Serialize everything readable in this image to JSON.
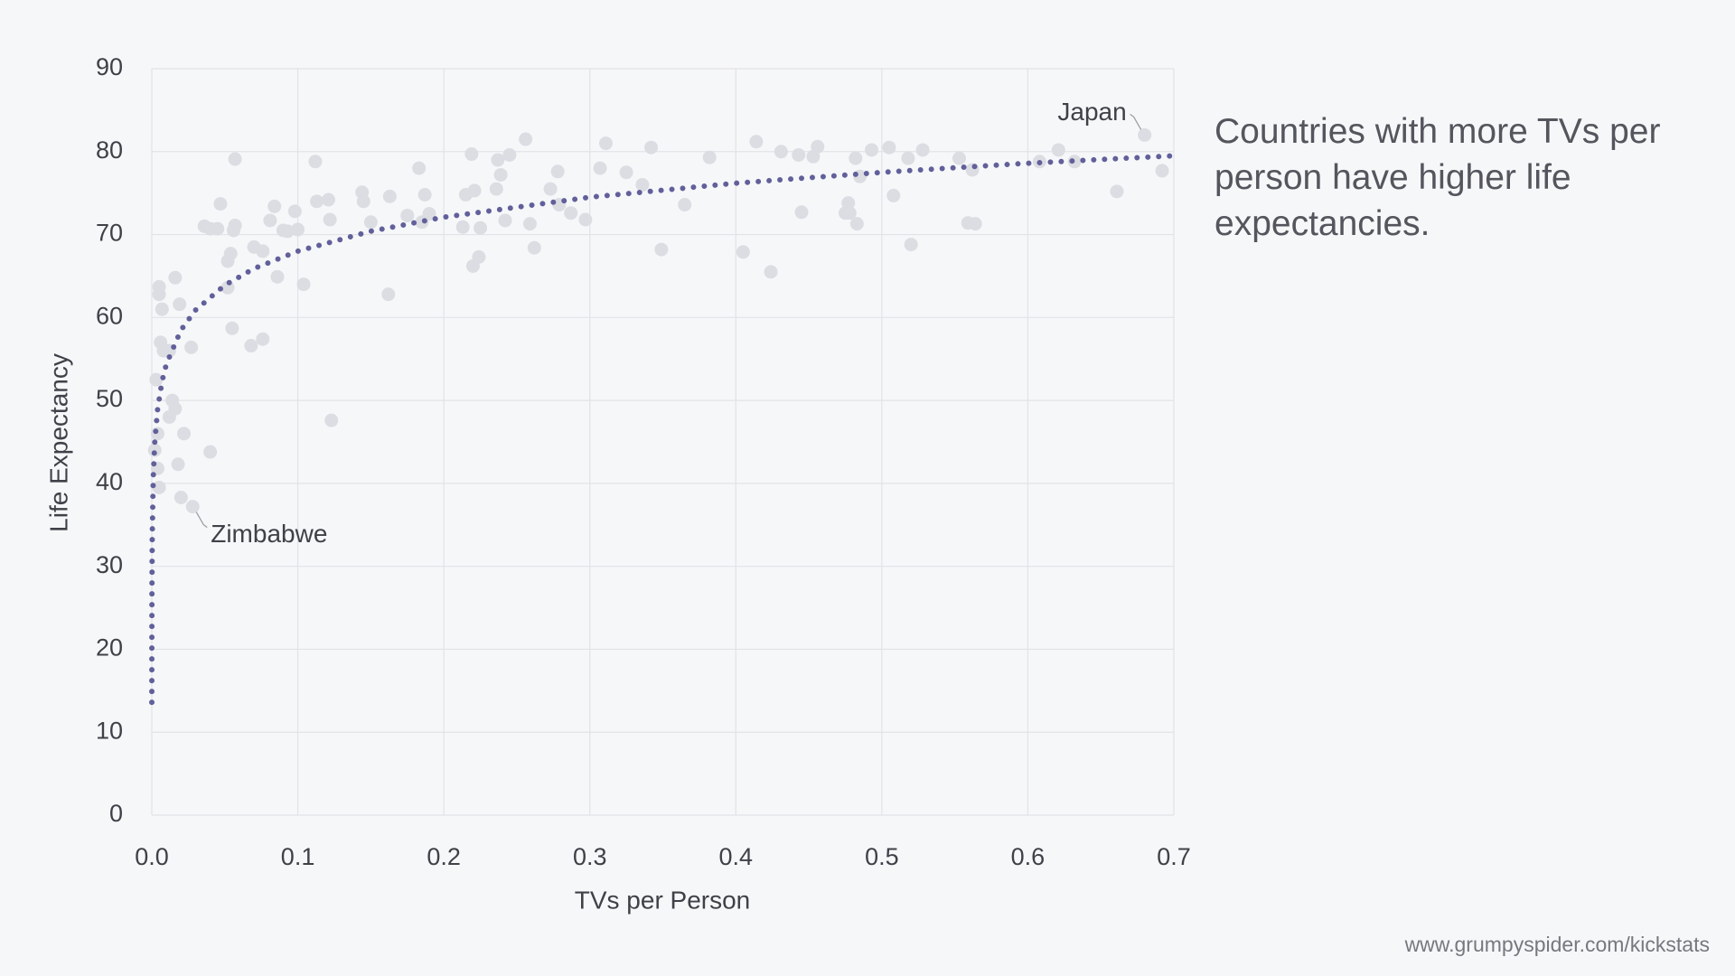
{
  "chart_data": {
    "type": "scatter",
    "headline": "Countries with more TVs per person have higher life expectancies.",
    "source": "www.grumpyspider.com/kickstats",
    "x_label": "TVs per Person",
    "y_label": "Life Expectancy",
    "xlim": [
      0,
      0.7
    ],
    "ylim": [
      0,
      90
    ],
    "xticks": [
      {
        "value": 0,
        "label": "0.0"
      },
      0.1,
      0.2,
      0.3,
      0.4,
      0.5,
      0.6,
      0.7
    ],
    "yticks": [
      0,
      10,
      20,
      30,
      40,
      50,
      60,
      70,
      80,
      90
    ],
    "grid": true,
    "series": [
      {
        "color": "#dcdde2",
        "style": "points",
        "x": [
          0.002,
          0.004,
          0.003,
          0.005,
          0.005,
          0.007,
          0.006,
          0.008,
          0.012,
          0.014,
          0.012,
          0.016,
          0.018,
          0.004,
          0.005,
          0.016,
          0.019,
          0.022,
          0.02,
          0.028,
          0.027,
          0.036,
          0.04,
          0.04,
          0.045,
          0.047,
          0.052,
          0.052,
          0.054,
          0.055,
          0.056,
          0.057,
          0.057,
          0.068,
          0.07,
          0.076,
          0.076,
          0.081,
          0.084,
          0.086,
          0.09,
          0.093,
          0.098,
          0.1,
          0.104,
          0.112,
          0.113,
          0.121,
          0.122,
          0.123,
          0.144,
          0.145,
          0.15,
          0.162,
          0.163,
          0.175,
          0.183,
          0.185,
          0.187,
          0.19,
          0.213,
          0.215,
          0.219,
          0.22,
          0.221,
          0.224,
          0.225,
          0.236,
          0.237,
          0.239,
          0.242,
          0.245,
          0.256,
          0.259,
          0.262,
          0.273,
          0.278,
          0.279,
          0.287,
          0.297,
          0.307,
          0.311,
          0.325,
          0.336,
          0.342,
          0.349,
          0.365,
          0.382,
          0.405,
          0.414,
          0.424,
          0.431,
          0.443,
          0.445,
          0.453,
          0.456,
          0.475,
          0.477,
          0.478,
          0.482,
          0.483,
          0.485,
          0.493,
          0.505,
          0.508,
          0.518,
          0.52,
          0.528,
          0.553,
          0.559,
          0.562,
          0.564,
          0.608,
          0.621,
          0.632,
          0.661,
          0.68,
          0.692
        ],
        "values": [
          44,
          46,
          52.5,
          62.8,
          63.7,
          61,
          57,
          56,
          56,
          50,
          48,
          49,
          42.3,
          41.8,
          39.5,
          64.8,
          61.6,
          46,
          38.3,
          37.2,
          56.4,
          71,
          70.7,
          43.8,
          70.7,
          73.7,
          63.6,
          66.8,
          67.7,
          58.7,
          70.5,
          71.1,
          79.1,
          56.6,
          68.5,
          57.4,
          68.0,
          71.7,
          73.4,
          64.9,
          70.5,
          70.4,
          72.8,
          70.6,
          64,
          78.8,
          74,
          74.2,
          71.8,
          47.6,
          75.1,
          74,
          71.5,
          62.8,
          74.6,
          72.3,
          78,
          71.5,
          74.8,
          72.5,
          70.9,
          74.8,
          79.7,
          66.2,
          75.3,
          67.3,
          70.8,
          75.5,
          79,
          77.2,
          71.7,
          79.6,
          81.5,
          71.3,
          68.4,
          75.5,
          77.6,
          73.6,
          72.6,
          71.8,
          78,
          81,
          77.5,
          76,
          80.5,
          68.2,
          73.6,
          79.3,
          67.9,
          81.2,
          65.5,
          80,
          79.6,
          72.7,
          79.4,
          80.6,
          72.6,
          73.8,
          72.6,
          79.2,
          71.3,
          77,
          80.2,
          80.5,
          74.7,
          79.2,
          68.8,
          80.2,
          79.2,
          71.4,
          77.8,
          71.3,
          78.8,
          80.2,
          78.8,
          75.2,
          82,
          77.7
        ]
      },
      {
        "color": "#62609a",
        "style": "dotted-line",
        "x": [
          1e-05,
          3e-05,
          0.0001,
          0.0003,
          0.001,
          0.002,
          0.004,
          0.007,
          0.01,
          0.02,
          0.03,
          0.05,
          0.07,
          0.1,
          0.15,
          0.2,
          0.3,
          0.4,
          0.5,
          0.6,
          0.7
        ],
        "values": [
          13.6,
          20.1,
          27.2,
          33.7,
          40.8,
          44.9,
          49.0,
          52.3,
          54.4,
          58.5,
          60.9,
          63.9,
          65.9,
          68.0,
          70.4,
          72.1,
          74.5,
          76.2,
          77.5,
          78.6,
          79.5
        ]
      }
    ],
    "annotations": [
      {
        "text": "Japan",
        "x": 0.68,
        "y": 82,
        "side": "left"
      },
      {
        "text": "Zimbabwe",
        "x": 0.028,
        "y": 37.2,
        "side": "right"
      }
    ]
  }
}
